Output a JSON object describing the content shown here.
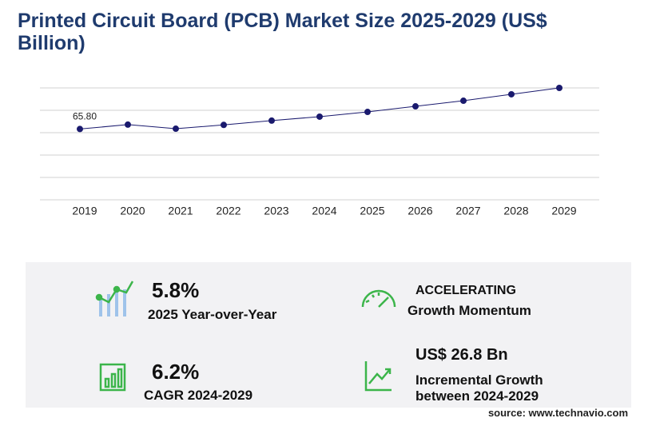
{
  "chart_data": {
    "type": "line",
    "title": "Printed Circuit Board (PCB) Market Size 2025-2029 (US$ Billion)",
    "categories": [
      "2019",
      "2020",
      "2021",
      "2022",
      "2023",
      "2024",
      "2025",
      "2026",
      "2027",
      "2028",
      "2029"
    ],
    "values": [
      65.8,
      69.9,
      66.1,
      69.6,
      73.6,
      77.3,
      81.7,
      86.9,
      92.1,
      98.1,
      104.0
    ],
    "value_labels": [
      "65.80",
      null,
      null,
      null,
      null,
      null,
      null,
      null,
      null,
      null,
      null
    ],
    "color": "#1a1a6e",
    "ylim": [
      0,
      104
    ],
    "yticks": [
      0,
      20.8,
      41.6,
      62.4,
      83.2,
      104
    ],
    "grid": true
  },
  "stats": [
    {
      "value": "5.8%",
      "label": "2025 Year-over-Year"
    },
    {
      "value": "ACCELERATING",
      "label": "Growth Momentum"
    },
    {
      "value": "6.2%",
      "label": "CAGR 2024-2029"
    },
    {
      "value": "US$ 26.8 Bn",
      "label": "Incremental Growth between 2024-2029"
    }
  ],
  "source": "source: www.technavio.com"
}
